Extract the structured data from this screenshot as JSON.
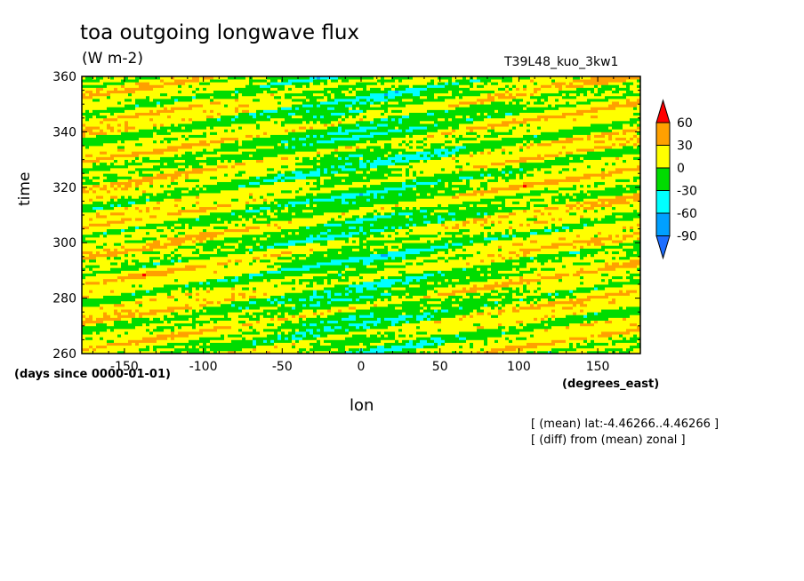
{
  "header": {
    "title": "toa outgoing longwave flux",
    "units": "(W m-2)",
    "run_name": "T39L48_kuo_3kw1"
  },
  "notes": [
    "[ (mean) lat:-4.46266..4.46266 ]",
    "[ (diff) from (mean) zonal ]"
  ],
  "chart_data": {
    "type": "heatmap",
    "title": "toa outgoing longwave flux",
    "subtitle": "(W m-2)",
    "xlabel": "lon",
    "x_units": "(degrees_east)",
    "ylabel": "time",
    "y_units": "(days since 0000-01-01)",
    "xlim": [
      -177,
      177
    ],
    "ylim": [
      260,
      360
    ],
    "x_ticks": [
      -150,
      -100,
      -50,
      0,
      50,
      100,
      150
    ],
    "x_tick_labels": [
      "-150",
      "-100",
      "-50",
      "0",
      "50",
      "100",
      "150"
    ],
    "y_ticks": [
      260,
      280,
      300,
      320,
      340,
      360
    ],
    "y_tick_labels": [
      "260",
      "280",
      "300",
      "320",
      "340",
      "360"
    ],
    "colorbar": {
      "levels": [
        -90,
        -60,
        -30,
        0,
        30,
        60
      ],
      "level_labels": [
        "-90",
        "-60",
        "-30",
        "0",
        "30",
        "60"
      ],
      "colors": [
        "#1e6eff",
        "#00a0ff",
        "#00ffff",
        "#00dc00",
        "#ffff00",
        "#ffa000",
        "#ff0000"
      ],
      "extend": "both"
    },
    "grid": false
  }
}
